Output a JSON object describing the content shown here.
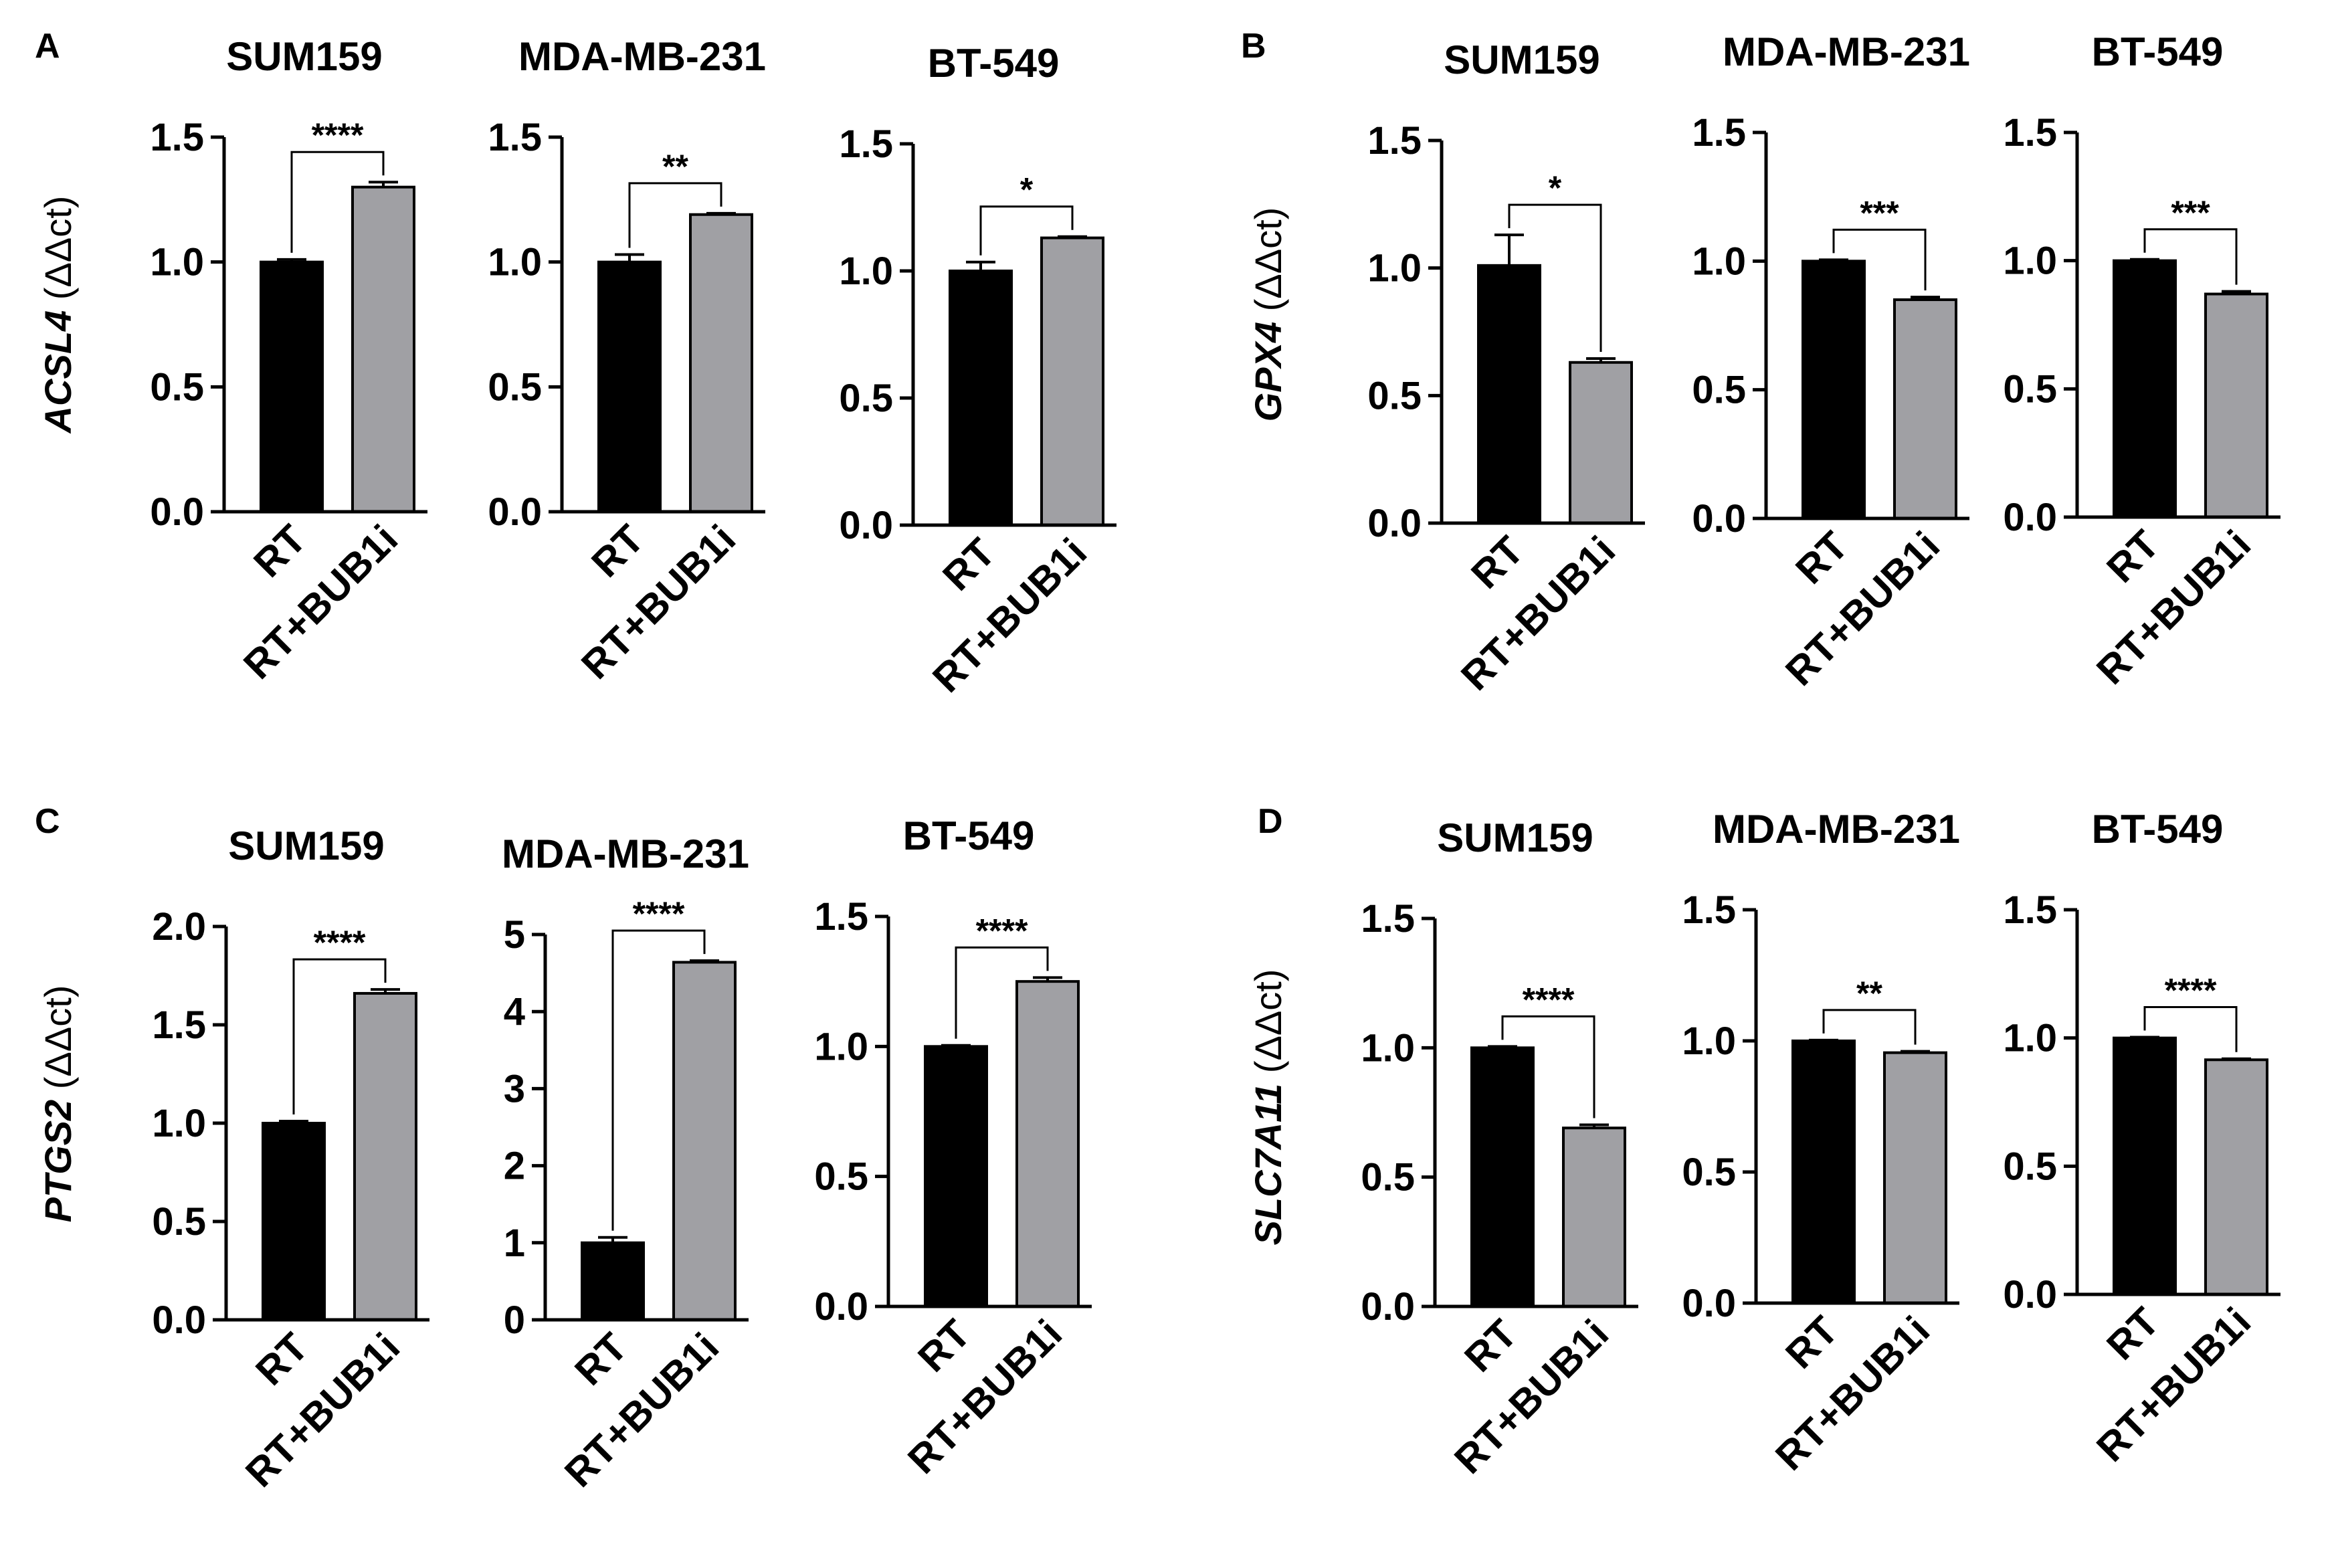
{
  "colors": {
    "rt": "#000000",
    "combo": "#a0a0a4",
    "axis": "#000000",
    "background": "#ffffff"
  },
  "panels": [
    {
      "letter": "A",
      "gene": "ACSL4",
      "unit": " (ΔΔct)"
    },
    {
      "letter": "B",
      "gene": "GPX4",
      "unit": " (ΔΔct)"
    },
    {
      "letter": "C",
      "gene": "PTGS2",
      "unit": " (ΔΔct)"
    },
    {
      "letter": "D",
      "gene": "SLC7A11",
      "unit": " (ΔΔct)"
    }
  ],
  "chart_data": [
    {
      "panel": "A",
      "type": "bar",
      "title": "SUM159",
      "categories": [
        "RT",
        "RT+BUB1i"
      ],
      "values": [
        1.0,
        1.3
      ],
      "errors": [
        0.01,
        0.02
      ],
      "significance": "****",
      "ylim": [
        0,
        1.5
      ],
      "yticks": [
        "0.0",
        "0.5",
        "1.0",
        "1.5"
      ],
      "ylabel": "ACSL4 (ΔΔct)"
    },
    {
      "panel": "A",
      "type": "bar",
      "title": "MDA-MB-231",
      "categories": [
        "RT",
        "RT+BUB1i"
      ],
      "values": [
        1.0,
        1.19
      ],
      "errors": [
        0.03,
        0.005
      ],
      "significance": "**",
      "ylim": [
        0,
        1.5
      ],
      "yticks": [
        "0.0",
        "0.5",
        "1.0",
        "1.5"
      ]
    },
    {
      "panel": "A",
      "type": "bar",
      "title": "BT-549",
      "categories": [
        "RT",
        "RT+BUB1i"
      ],
      "values": [
        1.0,
        1.13
      ],
      "errors": [
        0.035,
        0.005
      ],
      "significance": "*",
      "ylim": [
        0,
        1.5
      ],
      "yticks": [
        "0.0",
        "0.5",
        "1.0",
        "1.5"
      ]
    },
    {
      "panel": "B",
      "type": "bar",
      "title": "SUM159",
      "categories": [
        "RT",
        "RT+BUB1i"
      ],
      "values": [
        1.01,
        0.63
      ],
      "errors": [
        0.12,
        0.015
      ],
      "significance": "*",
      "ylim": [
        0,
        1.5
      ],
      "yticks": [
        "0.0",
        "0.5",
        "1.0",
        "1.5"
      ],
      "ylabel": "GPX4 (ΔΔct)"
    },
    {
      "panel": "B",
      "type": "bar",
      "title": "MDA-MB-231",
      "categories": [
        "RT",
        "RT+BUB1i"
      ],
      "values": [
        1.0,
        0.85
      ],
      "errors": [
        0.005,
        0.01
      ],
      "significance": "***",
      "ylim": [
        0,
        1.5
      ],
      "yticks": [
        "0.0",
        "0.5",
        "1.0",
        "1.5"
      ]
    },
    {
      "panel": "B",
      "type": "bar",
      "title": "BT-549",
      "categories": [
        "RT",
        "RT+BUB1i"
      ],
      "values": [
        1.0,
        0.87
      ],
      "errors": [
        0.005,
        0.01
      ],
      "significance": "***",
      "ylim": [
        0,
        1.5
      ],
      "yticks": [
        "0.0",
        "0.5",
        "1.0",
        "1.5"
      ]
    },
    {
      "panel": "C",
      "type": "bar",
      "title": "SUM159",
      "categories": [
        "RT",
        "RT+BUB1i"
      ],
      "values": [
        1.0,
        1.66
      ],
      "errors": [
        0.01,
        0.02
      ],
      "significance": "****",
      "ylim": [
        0,
        2.0
      ],
      "yticks": [
        "0.0",
        "0.5",
        "1.0",
        "1.5",
        "2.0"
      ],
      "ylabel": "PTGS2 (ΔΔct)"
    },
    {
      "panel": "C",
      "type": "bar",
      "title": "MDA-MB-231",
      "categories": [
        "RT",
        "RT+BUB1i"
      ],
      "values": [
        1.0,
        4.64
      ],
      "errors": [
        0.07,
        0.02
      ],
      "significance": "****",
      "ylim": [
        0,
        5
      ],
      "yticks": [
        "0",
        "1",
        "2",
        "3",
        "4",
        "5"
      ]
    },
    {
      "panel": "C",
      "type": "bar",
      "title": "BT-549",
      "categories": [
        "RT",
        "RT+BUB1i"
      ],
      "values": [
        1.0,
        1.25
      ],
      "errors": [
        0.004,
        0.015
      ],
      "significance": "****",
      "ylim": [
        0,
        1.5
      ],
      "yticks": [
        "0.0",
        "0.5",
        "1.0",
        "1.5"
      ]
    },
    {
      "panel": "D",
      "type": "bar",
      "title": "SUM159",
      "categories": [
        "RT",
        "RT+BUB1i"
      ],
      "values": [
        1.0,
        0.69
      ],
      "errors": [
        0.005,
        0.012
      ],
      "significance": "****",
      "ylim": [
        0,
        1.5
      ],
      "yticks": [
        "0.0",
        "0.5",
        "1.0",
        "1.5"
      ],
      "ylabel": "SLC7A11 (ΔΔct)"
    },
    {
      "panel": "D",
      "type": "bar",
      "title": "MDA-MB-231",
      "categories": [
        "RT",
        "RT+BUB1i"
      ],
      "values": [
        1.0,
        0.955
      ],
      "errors": [
        0.003,
        0.005
      ],
      "significance": "**",
      "ylim": [
        0,
        1.5
      ],
      "yticks": [
        "0.0",
        "0.5",
        "1.0",
        "1.5"
      ]
    },
    {
      "panel": "D",
      "type": "bar",
      "title": "BT-549",
      "categories": [
        "RT",
        "RT+BUB1i"
      ],
      "values": [
        1.0,
        0.915
      ],
      "errors": [
        0.003,
        0.004
      ],
      "significance": "****",
      "ylim": [
        0,
        1.5
      ],
      "yticks": [
        "0.0",
        "0.5",
        "1.0",
        "1.5"
      ]
    }
  ]
}
